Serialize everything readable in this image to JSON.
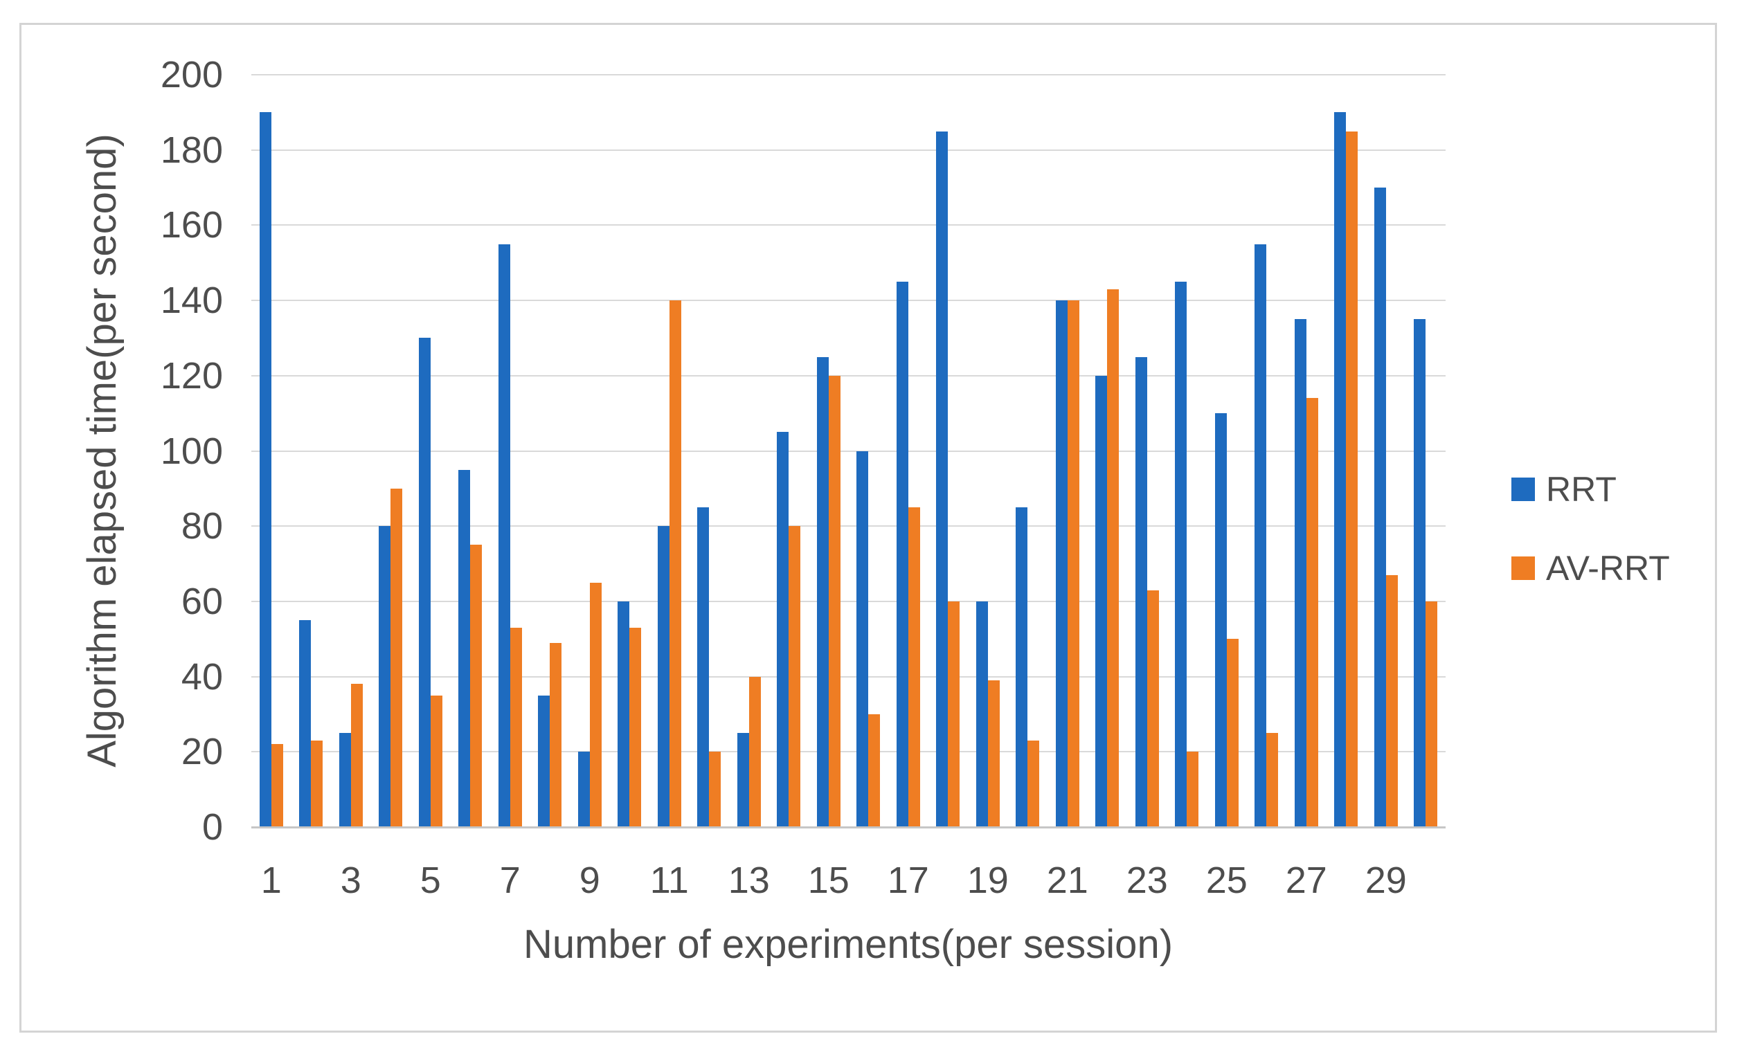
{
  "chart_data": {
    "type": "bar",
    "title": "",
    "categories": [
      1,
      2,
      3,
      4,
      5,
      6,
      7,
      8,
      9,
      10,
      11,
      12,
      13,
      14,
      15,
      16,
      17,
      18,
      19,
      20,
      21,
      22,
      23,
      24,
      25,
      26,
      27,
      28,
      29,
      30
    ],
    "series": [
      {
        "name": "RRT",
        "color": "#1e6bbf",
        "values": [
          190,
          55,
          25,
          80,
          130,
          95,
          155,
          35,
          20,
          60,
          80,
          85,
          25,
          105,
          125,
          100,
          145,
          185,
          60,
          85,
          140,
          120,
          125,
          145,
          110,
          155,
          135,
          190,
          170,
          135
        ]
      },
      {
        "name": "AV-RRT",
        "color": "#ef7d23",
        "values": [
          22,
          23,
          38,
          90,
          35,
          75,
          53,
          49,
          65,
          53,
          140,
          20,
          40,
          80,
          120,
          30,
          85,
          60,
          39,
          23,
          140,
          143,
          63,
          20,
          50,
          25,
          114,
          185,
          67,
          60
        ]
      }
    ],
    "xlabel": "Number of experiments(per session)",
    "ylabel": "Algorithm elapsed time(per second)",
    "ylim": [
      0,
      200
    ],
    "ytick_step": 20,
    "ytick_labels": [
      "0",
      "20",
      "40",
      "60",
      "80",
      "100",
      "120",
      "140",
      "160",
      "180",
      "200"
    ],
    "xtick_labels": [
      "1",
      "3",
      "5",
      "7",
      "9",
      "11",
      "13",
      "15",
      "17",
      "19",
      "21",
      "23",
      "25",
      "27",
      "29"
    ],
    "grid": true,
    "legend_position": "right"
  },
  "colors": {
    "grid": "#d9d9d9",
    "axis_line": "#c6c6c6",
    "text": "#4d4d4d",
    "frame_border": "#d4d4d4",
    "background": "#ffffff"
  }
}
